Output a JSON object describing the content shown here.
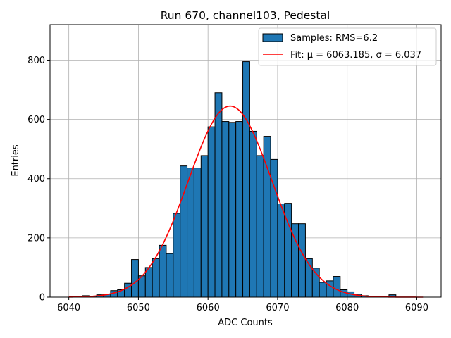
{
  "chart_data": {
    "type": "bar",
    "title": "Run 670, channel103, Pedestal",
    "xlabel": "ADC Counts",
    "ylabel": "Entries",
    "xlim": [
      6037.3,
      6093.5
    ],
    "ylim": [
      0,
      920
    ],
    "xticks": [
      6040,
      6050,
      6060,
      6070,
      6080,
      6090
    ],
    "yticks": [
      0,
      200,
      400,
      600,
      800
    ],
    "grid": true,
    "legend_position": "top-right",
    "bin_width": 1,
    "bin_edges_start": 6040,
    "bin_edges_end": 6091,
    "histogram": [
      0,
      0,
      5,
      3,
      8,
      10,
      22,
      25,
      47,
      127,
      72,
      100,
      130,
      175,
      147,
      283,
      443,
      436,
      436,
      478,
      575,
      690,
      593,
      590,
      593,
      795,
      560,
      478,
      543,
      465,
      315,
      317,
      248,
      248,
      130,
      98,
      50,
      55,
      70,
      25,
      18,
      10,
      5,
      0,
      3,
      3,
      8,
      0,
      0,
      0,
      0
    ],
    "fit": {
      "mu": 6063.185,
      "sigma": 6.037,
      "amplitude": 645
    },
    "series": [
      {
        "name": "Samples: RMS=6.2",
        "kind": "histogram",
        "color": "#1f77b4",
        "edgecolor": "#000000"
      },
      {
        "name": "Fit: μ = 6063.185, σ = 6.037",
        "kind": "line",
        "color": "#ff0000"
      }
    ]
  }
}
